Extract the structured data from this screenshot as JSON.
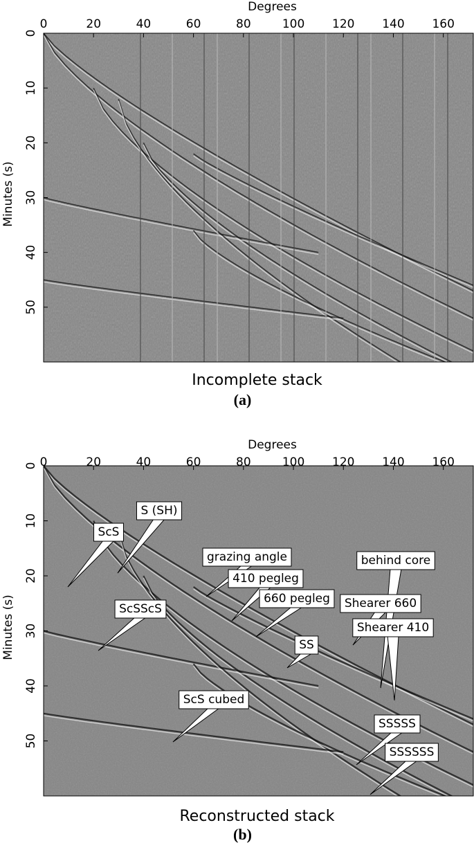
{
  "chart_data": [
    {
      "type": "image",
      "x_label": "Degrees",
      "y_label": "Minutes (s)",
      "xlim": [
        0,
        172
      ],
      "ylim": [
        0,
        60
      ],
      "y_inverted": true,
      "xticks": [
        0,
        20,
        40,
        60,
        80,
        100,
        120,
        140,
        160
      ],
      "yticks": [
        0,
        10,
        20,
        30,
        40,
        50
      ],
      "caption": "Incomplete stack",
      "panel_label": "(a)",
      "annotations": []
    },
    {
      "type": "image",
      "x_label": "Degrees",
      "y_label": "Minutes (s)",
      "xlim": [
        0,
        172
      ],
      "ylim": [
        0,
        60
      ],
      "y_inverted": true,
      "xticks": [
        0,
        20,
        40,
        60,
        80,
        100,
        120,
        140,
        160
      ],
      "yticks": [
        0,
        10,
        20,
        30,
        40,
        50
      ],
      "caption": "Reconstructed stack",
      "panel_label": "(b)",
      "annotations": [
        "ScS",
        "S (SH)",
        "grazing angle",
        "410 pegleg",
        "660 pegleg",
        "behind core",
        "Shearer 660",
        "Shearer 410",
        "ScSScS",
        "SS",
        "ScS cubed",
        "SSSSS",
        "SSSSSS"
      ]
    }
  ]
}
